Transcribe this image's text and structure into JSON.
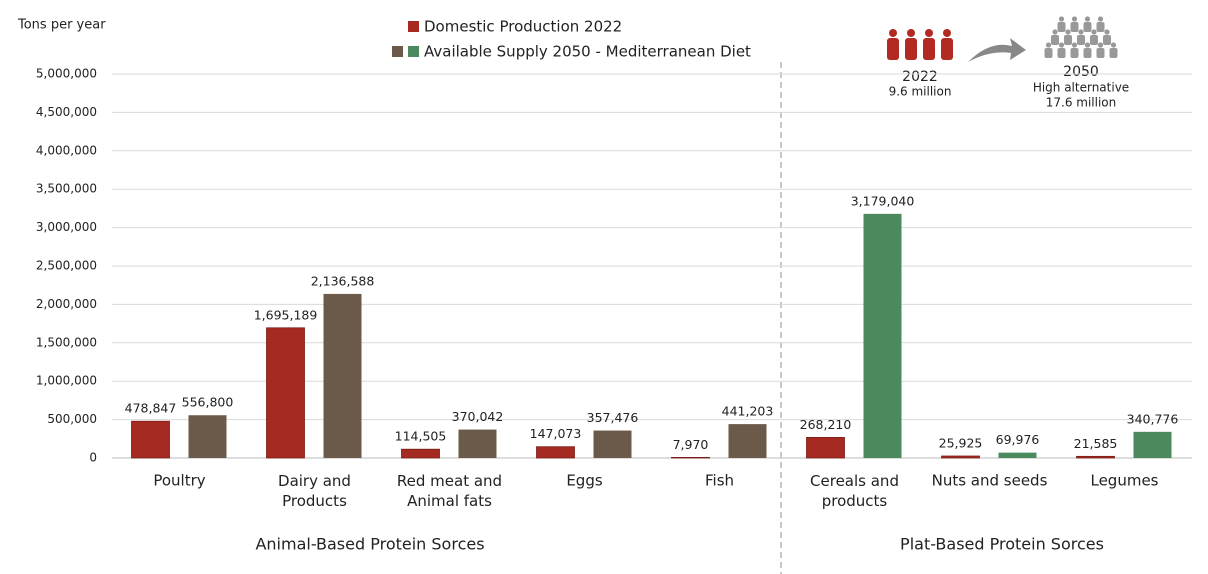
{
  "chart_data": {
    "type": "bar",
    "y_label": "Tons per year",
    "categories": [
      "Poultry",
      "Dairy  and\nProducts",
      "Red meat and\nAnimal fats",
      "Eggs",
      "Fish",
      "Cereals and\nproducts",
      "Nuts and seeds",
      "Legumes"
    ],
    "series": [
      {
        "name": "Domestic Production 2022",
        "color": "#a52a22",
        "values": [
          478847,
          1695189,
          114505,
          147073,
          7970,
          268210,
          25925,
          21585
        ],
        "value_labels": [
          "478,847",
          "1,695,189",
          "114,505",
          "147,073",
          "7,970",
          "268,210",
          "25,925",
          "21,585"
        ]
      },
      {
        "name": "Available Supply 2050  - Mediterranean Diet",
        "color": "#6b5a4a",
        "colors": [
          "#6b5a4a",
          "#6b5a4a",
          "#6b5a4a",
          "#6b5a4a",
          "#6b5a4a",
          "#4b8a5c",
          "#4b8a5c",
          "#4b8a5c"
        ],
        "legend_colors": [
          "#6b5a4a",
          "#4b8a5c"
        ],
        "values": [
          556800,
          2136588,
          370042,
          357476,
          441203,
          3179040,
          69976,
          340776
        ],
        "value_labels": [
          "556,800",
          "2,136,588",
          "370,042",
          "357,476",
          "441,203",
          "3,179,040",
          "69,976",
          "340,776"
        ]
      }
    ],
    "ylim": [
      0,
      5000000
    ],
    "yticks": [
      0,
      {
        "value": 500000,
        "label": "500,000"
      },
      {
        "value": 1000000,
        "label": "1,000,000"
      },
      {
        "value": 1500000,
        "label": "1,500,000"
      },
      {
        "value": 2000000,
        "label": "2,000,000"
      },
      {
        "value": 2500000,
        "label": "2,500,000"
      },
      {
        "value": 3000000,
        "label": "3,000,000"
      },
      {
        "value": 3500000,
        "label": "3,500,000"
      },
      {
        "value": 4000000,
        "label": "4,000,000"
      },
      {
        "value": 4500000,
        "label": "4,500,000"
      },
      {
        "value": 5000000,
        "label": "5,000,000"
      }
    ],
    "grid": true,
    "groups": [
      "Animal-Based Protein Sorces",
      "Plat-Based Protein Sorces"
    ],
    "annotations": {
      "year_2022": "2022",
      "pop_2022": "9.6 million",
      "year_2050": "2050",
      "scenario_2050": "High alternative",
      "pop_2050": "17.6 million"
    }
  }
}
